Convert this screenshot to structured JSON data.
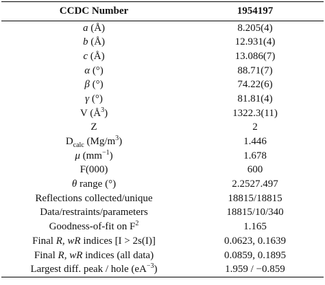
{
  "table": {
    "header": [
      "CCDC Number",
      "1954197"
    ],
    "rows": [
      {
        "label": [
          {
            "text": "a",
            "style": "i"
          },
          " (Å)"
        ],
        "value": "8.205(4)"
      },
      {
        "label": [
          {
            "text": "b",
            "style": "i"
          },
          " (Å)"
        ],
        "value": "12.931(4)"
      },
      {
        "label": [
          {
            "text": "c",
            "style": "i"
          },
          " (Å)"
        ],
        "value": "13.086(7)"
      },
      {
        "label": [
          {
            "text": "α",
            "style": "i"
          },
          " (°)"
        ],
        "value": "88.71(7)"
      },
      {
        "label": [
          {
            "text": "β",
            "style": "i"
          },
          " (°)"
        ],
        "value": "74.22(6)"
      },
      {
        "label": [
          {
            "text": "γ",
            "style": "i"
          },
          " (°)"
        ],
        "value": "81.81(4)"
      },
      {
        "label": [
          "V (Å",
          {
            "text": "3",
            "style": "sup"
          },
          ")"
        ],
        "value": "1322.3(11)"
      },
      {
        "label": [
          "Z"
        ],
        "value": "2"
      },
      {
        "label": [
          "D",
          {
            "text": "calc",
            "style": "sub"
          },
          " (Mg/m",
          {
            "text": "3",
            "style": "sup"
          },
          ")"
        ],
        "value": "1.446"
      },
      {
        "label": [
          {
            "text": "μ",
            "style": "i"
          },
          " (mm",
          {
            "text": "−1",
            "style": "sup"
          },
          ")"
        ],
        "value": "1.678"
      },
      {
        "label": [
          "F(000)"
        ],
        "value": "600"
      },
      {
        "label": [
          {
            "text": "θ",
            "style": "i"
          },
          " range (°)"
        ],
        "value": "2.2527.497"
      },
      {
        "label": [
          "Reflections collected/unique"
        ],
        "value": "18815/18815"
      },
      {
        "label": [
          "Data/restraints/parameters"
        ],
        "value": "18815/10/340"
      },
      {
        "label": [
          "Goodness-of-fit on F",
          {
            "text": "2",
            "style": "sup"
          }
        ],
        "value": "1.165"
      },
      {
        "label": [
          "Final ",
          {
            "text": "R",
            "style": "i"
          },
          ", ",
          {
            "text": "wR",
            "style": "i"
          },
          " indices [I > 2s(I)]"
        ],
        "value": "0.0623, 0.1639"
      },
      {
        "label": [
          "Final ",
          {
            "text": "R",
            "style": "i"
          },
          ", ",
          {
            "text": "wR",
            "style": "i"
          },
          " indices (all data)"
        ],
        "value": "0.0859, 0.1895"
      },
      {
        "label": [
          "Largest diff. peak / hole (eA",
          {
            "text": "−3",
            "style": "sup"
          },
          ")"
        ],
        "value": "1.959 / −0.859"
      }
    ]
  }
}
